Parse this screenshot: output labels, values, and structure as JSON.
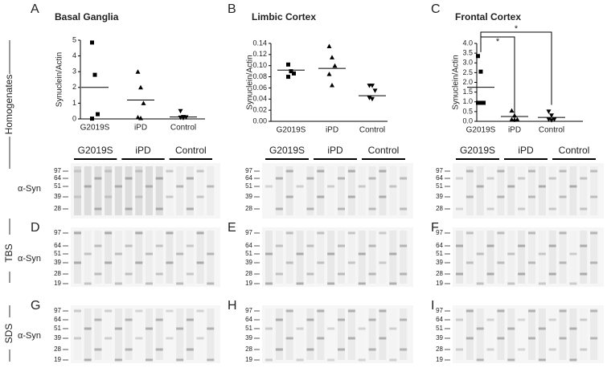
{
  "chart_data": [
    {
      "type": "strip",
      "title": "Basal Ganglia",
      "y_label": "Synuclein/Actin",
      "categories": [
        "G2019S",
        "iPD",
        "Control"
      ],
      "markers": [
        "square",
        "triangle",
        "triangle-down"
      ],
      "points": [
        [
          4.85,
          2.8,
          0.3,
          0.02
        ],
        [
          3.0,
          2.0,
          1.0,
          0.1,
          0.05
        ],
        [
          0.5,
          0.12,
          0.1,
          0.08,
          0.06
        ]
      ],
      "means": [
        2.0,
        1.2,
        0.12
      ],
      "ylim": [
        0,
        5
      ],
      "yticks": [
        0,
        1,
        2,
        3,
        4,
        5
      ],
      "color": "#000000"
    },
    {
      "type": "strip",
      "title": "Limbic Cortex",
      "y_label": "Synuclein/Actin",
      "categories": [
        "G2019S",
        "iPD",
        "Control"
      ],
      "markers": [
        "square",
        "triangle",
        "triangle-down"
      ],
      "points": [
        [
          0.102,
          0.09,
          0.086,
          0.08
        ],
        [
          0.135,
          0.115,
          0.1,
          0.085,
          0.065
        ],
        [
          0.064,
          0.064,
          0.055,
          0.042,
          0.04
        ]
      ],
      "means": [
        0.092,
        0.095,
        0.046
      ],
      "ylim": [
        0,
        0.14
      ],
      "yticks": [
        {
          "value": 0,
          "label": "0.00"
        },
        {
          "value": 0.02,
          "label": "0.02"
        },
        {
          "value": 0.04,
          "label": "0.04"
        },
        {
          "value": 0.06,
          "label": "0.06"
        },
        {
          "value": 0.08,
          "label": "0.08"
        },
        {
          "value": 0.1,
          "label": "0.10"
        },
        {
          "value": 0.12,
          "label": "0.12"
        },
        {
          "value": 0.14,
          "label": "0.14"
        }
      ],
      "color": "#000000"
    },
    {
      "type": "strip",
      "title": "Frontal Cortex",
      "y_label": "Synuclein/Actin",
      "categories": [
        "G2019S",
        "iPD",
        "Control"
      ],
      "markers": [
        "square",
        "triangle",
        "triangle-down"
      ],
      "points": [
        [
          3.35,
          2.55,
          0.95,
          0.95,
          0.95
        ],
        [
          0.55,
          0.3,
          0.1,
          0.1,
          0.08
        ],
        [
          0.5,
          0.3,
          0.1,
          0.1,
          0.05
        ]
      ],
      "means": [
        1.75,
        0.25,
        0.2
      ],
      "ylim": [
        0,
        4
      ],
      "yticks": [
        {
          "value": 0,
          "label": "0.0"
        },
        {
          "value": 0.5,
          "label": "0.5"
        },
        {
          "value": 1,
          "label": "1.0"
        },
        {
          "value": 1.5,
          "label": "1.5"
        },
        {
          "value": 2,
          "label": "2.0"
        },
        {
          "value": 2.5,
          "label": "2.5"
        },
        {
          "value": 3,
          "label": "3.0"
        },
        {
          "value": 3.5,
          "label": "3.5"
        },
        {
          "value": 4,
          "label": "4.0"
        }
      ],
      "annotations": [
        "*",
        "*"
      ],
      "color": "#000000"
    }
  ],
  "figure": {
    "panel_letters": [
      "A",
      "B",
      "C",
      "D",
      "E",
      "F",
      "G",
      "H",
      "I"
    ],
    "row_labels": [
      "Homogenates",
      "TBS",
      "SDS"
    ],
    "antibody": "α-Syn",
    "blot_groups": [
      "G2019S",
      "iPD",
      "Control"
    ],
    "mw_markers": [
      [
        "97",
        "64",
        "51",
        "39",
        "28"
      ],
      [
        "97",
        "64",
        "51",
        "39",
        "28",
        "19"
      ],
      [
        "97",
        "64",
        "51",
        "39",
        "28",
        "19"
      ]
    ]
  }
}
